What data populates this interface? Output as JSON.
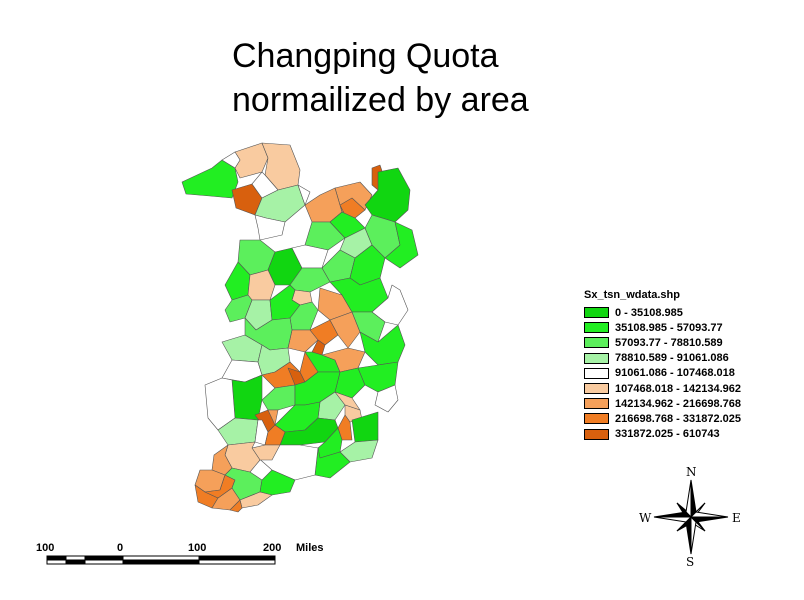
{
  "title_line1": "Changping Quota",
  "title_line2": "normailized by area",
  "legend": {
    "title": "Sx_tsn_wdata.shp",
    "classes": [
      {
        "label": "0 - 35108.985",
        "color": "#11d611"
      },
      {
        "label": "35108.985 - 57093.77",
        "color": "#22ee22"
      },
      {
        "label": "57093.77 - 78810.589",
        "color": "#5cef5c"
      },
      {
        "label": "78810.589 - 91061.086",
        "color": "#a6f2a6"
      },
      {
        "label": "91061.086 - 107468.018",
        "color": "#ffffff"
      },
      {
        "label": "107468.018 - 142134.962",
        "color": "#f9cba0"
      },
      {
        "label": "142134.962 - 216698.768",
        "color": "#f5a05a"
      },
      {
        "label": "216698.768 - 331872.025",
        "color": "#f07d24"
      },
      {
        "label": "331872.025 - 610743",
        "color": "#d8600e"
      }
    ]
  },
  "scalebar": {
    "labels": [
      "100",
      "0",
      "100",
      "200"
    ],
    "unit": "Miles"
  },
  "compass": {
    "n": "N",
    "s": "S",
    "e": "E",
    "w": "W"
  }
}
